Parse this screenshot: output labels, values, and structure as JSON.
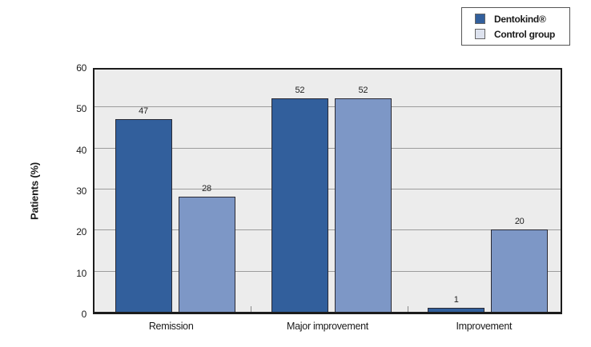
{
  "chart_data": {
    "type": "bar",
    "title": "",
    "categories": [
      "Remission",
      "Major improvement",
      "Improvement"
    ],
    "series": [
      {
        "name": "Dentokind®",
        "values": [
          47,
          52,
          1
        ],
        "color": "#325f9c",
        "legend_swatch": "#325f9c"
      },
      {
        "name": "Control group",
        "values": [
          28,
          52,
          20
        ],
        "color": "#7d97c6",
        "legend_swatch": "#dde2ee"
      }
    ],
    "xlabel": "",
    "ylabel": "Patients (%)",
    "ylim": [
      0,
      60
    ],
    "yticks": [
      0,
      10,
      20,
      30,
      40,
      50,
      60
    ],
    "grid": "horizontal",
    "legend_position": "top-right",
    "value_labels": true
  },
  "colors": {
    "plot_background": "#ececec",
    "gridline": "#9c9c9c",
    "frame": "#1c1c1c",
    "bar_border": "#2a2a34",
    "legend_border": "#555555",
    "text": "#1a1a1a"
  }
}
